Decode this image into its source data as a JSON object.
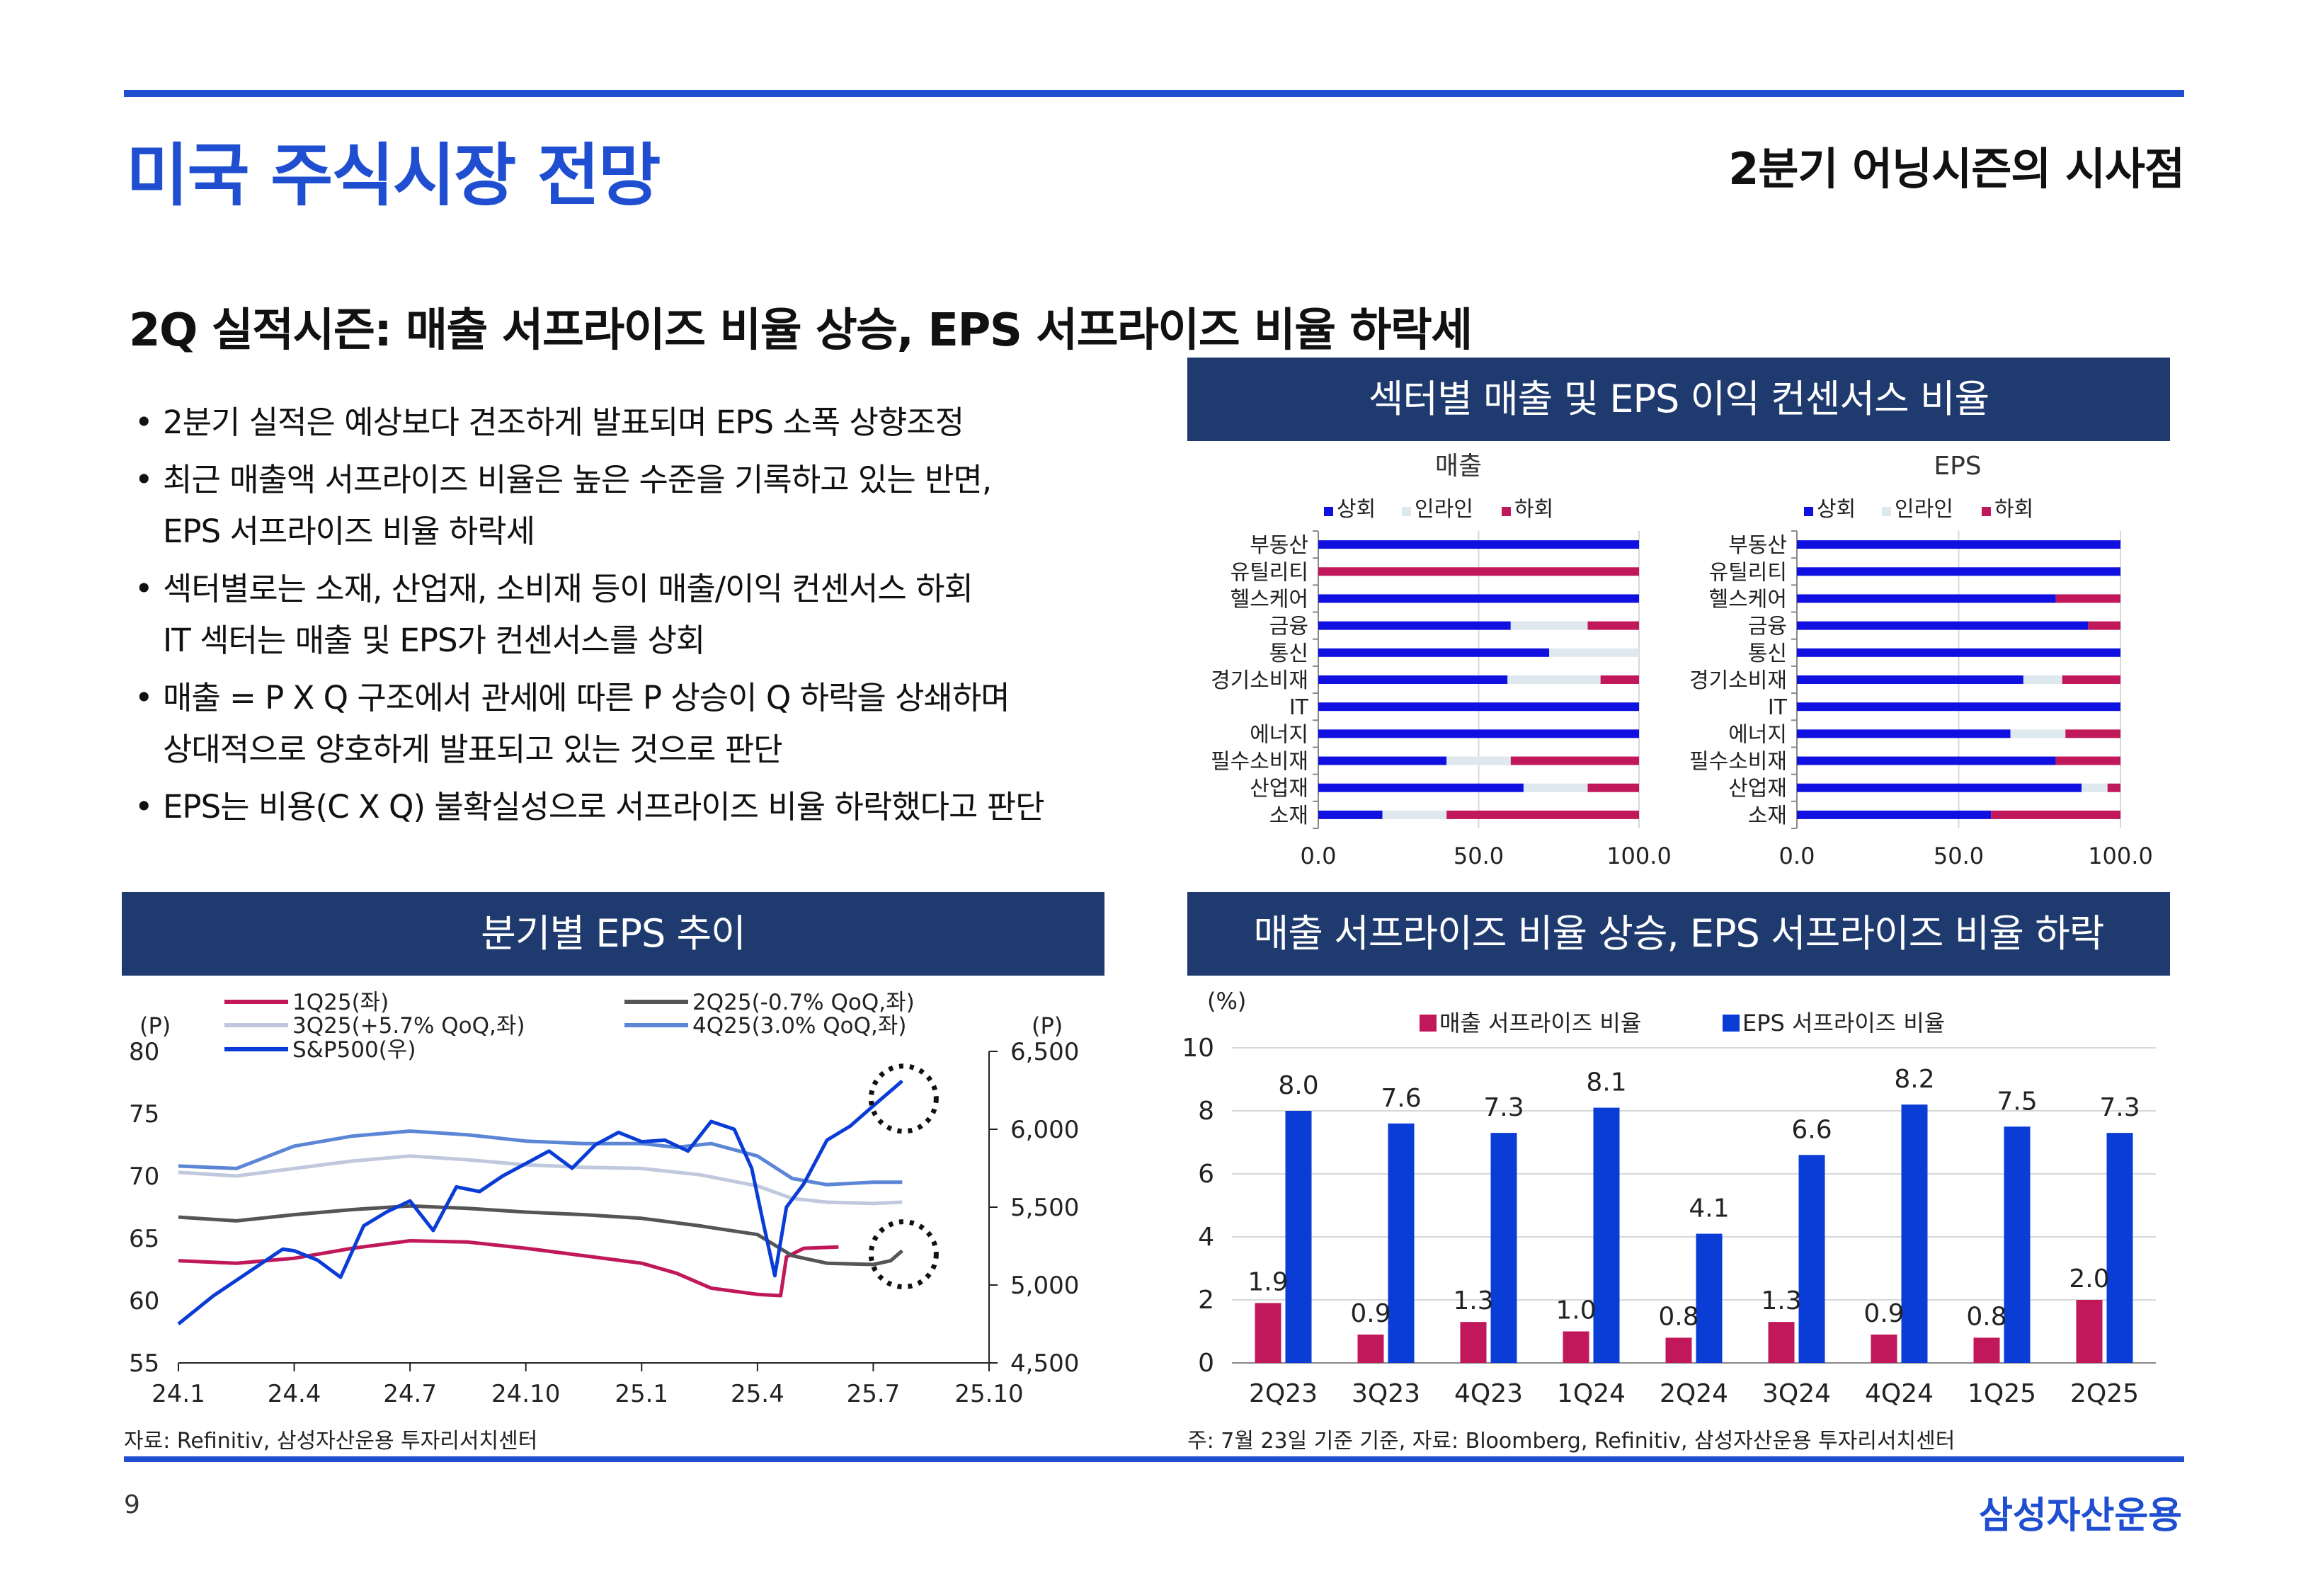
{
  "page": {
    "title": "미국 주식시장 전망",
    "subtitle": "2분기 어닝시즌의 시사점",
    "headline": "2Q 실적시즌: 매출 서프라이즈 비율 상승, EPS 서프라이즈 비율 하락세",
    "page_number": "9",
    "brand": "삼성자산운용"
  },
  "bullets": [
    {
      "lines": [
        "2분기 실적은 예상보다 견조하게 발표되며 EPS 소폭 상향조정"
      ]
    },
    {
      "lines": [
        "최근 매출액 서프라이즈 비율은 높은 수준을 기록하고 있는 반면,",
        "EPS 서프라이즈 비율 하락세"
      ]
    },
    {
      "lines": [
        "섹터별로는 소재, 산업재, 소비재 등이 매출/이익 컨센서스 하회",
        "IT 섹터는 매출 및 EPS가 컨센서스를 상회"
      ]
    },
    {
      "lines": [
        "매출 = P X Q 구조에서 관세에 따른 P 상승이 Q 하락을 상쇄하며",
        "상대적으로 양호하게 발표되고 있는 것으로 판단"
      ]
    },
    {
      "lines": [
        "EPS는 비용(C X Q) 불확실성으로 서프라이즈 비율 하락했다고 판단"
      ]
    }
  ],
  "panels": {
    "sector": {
      "title": "섹터별 매출 및 EPS 이익 컨센서스 비율"
    },
    "eps_trend": {
      "title": "분기별 EPS 추이",
      "source": "자료: Refinitiv, 삼성자산운용 투자리서치센터"
    },
    "surprise": {
      "title": "매출 서프라이즈 비율 상승, EPS 서프라이즈 비율 하락",
      "source": "주: 7월 23일 기준 기준, 자료: Bloomberg, Refinitiv, 삼성자산운용 투자리서치센터"
    }
  },
  "colors": {
    "brand_blue": "#1f4fd0",
    "panel_navy": "#1e3a6e",
    "beat": "#1010e0",
    "inline": "#dde8ef",
    "miss": "#c0185a"
  },
  "chart_data": [
    {
      "type": "bar",
      "stacked": true,
      "orientation": "horizontal",
      "title": "매출",
      "categories": [
        "부동산",
        "유틸리티",
        "헬스케어",
        "금융",
        "통신",
        "경기소비재",
        "IT",
        "에너지",
        "필수소비재",
        "산업재",
        "소재"
      ],
      "series": [
        {
          "name": "상회",
          "values": [
            100,
            0,
            100,
            60,
            72,
            59,
            100,
            100,
            40,
            64,
            20
          ]
        },
        {
          "name": "인라인",
          "values": [
            0,
            0,
            0,
            24,
            28,
            29,
            0,
            0,
            20,
            20,
            20
          ]
        },
        {
          "name": "하회",
          "values": [
            0,
            100,
            0,
            16,
            0,
            12,
            0,
            0,
            40,
            16,
            60
          ]
        }
      ],
      "xlim": [
        0,
        100
      ],
      "xticks": [
        "0.0",
        "50.0",
        "100.0"
      ],
      "legend": "top"
    },
    {
      "type": "bar",
      "stacked": true,
      "orientation": "horizontal",
      "title": "EPS",
      "categories": [
        "부동산",
        "유틸리티",
        "헬스케어",
        "금융",
        "통신",
        "경기소비재",
        "IT",
        "에너지",
        "필수소비재",
        "산업재",
        "소재"
      ],
      "series": [
        {
          "name": "상회",
          "values": [
            100,
            100,
            80,
            90,
            100,
            70,
            100,
            66,
            80,
            88,
            60
          ]
        },
        {
          "name": "인라인",
          "values": [
            0,
            0,
            0,
            0,
            0,
            12,
            0,
            17,
            0,
            8,
            0
          ]
        },
        {
          "name": "하회",
          "values": [
            0,
            0,
            20,
            10,
            0,
            18,
            0,
            17,
            20,
            4,
            40
          ]
        }
      ],
      "xlim": [
        0,
        100
      ],
      "xticks": [
        "0.0",
        "50.0",
        "100.0"
      ],
      "legend": "top"
    },
    {
      "type": "line",
      "x": [
        "24.1",
        "24.4",
        "24.7",
        "24.10",
        "25.1",
        "25.4",
        "25.7",
        "25.10"
      ],
      "ylabel_left": "(P)",
      "ylabel_right": "(P)",
      "ylim_left": [
        55,
        80
      ],
      "ylim_right": [
        4500,
        6500
      ],
      "yticks_left": [
        "80",
        "75",
        "70",
        "65",
        "60",
        "55"
      ],
      "yticks_right": [
        "6,500",
        "6,000",
        "5,500",
        "5,000",
        "4,500"
      ],
      "series": [
        {
          "name": "1Q25(좌)",
          "axis": "left",
          "color": "#c0185a",
          "points": [
            [
              0,
              63.2
            ],
            [
              0.5,
              63.0
            ],
            [
              1,
              63.4
            ],
            [
              1.5,
              64.2
            ],
            [
              2,
              64.8
            ],
            [
              2.5,
              64.7
            ],
            [
              3,
              64.2
            ],
            [
              3.5,
              63.6
            ],
            [
              4,
              63.0
            ],
            [
              4.3,
              62.2
            ],
            [
              4.6,
              61.0
            ],
            [
              5,
              60.5
            ],
            [
              5.2,
              60.4
            ],
            [
              5.25,
              63.5
            ],
            [
              5.4,
              64.2
            ],
            [
              5.7,
              64.3
            ]
          ]
        },
        {
          "name": "2Q25(-0.7% QoQ,좌)",
          "axis": "left",
          "color": "#555555",
          "points": [
            [
              0,
              66.7
            ],
            [
              0.5,
              66.4
            ],
            [
              1,
              66.9
            ],
            [
              1.5,
              67.3
            ],
            [
              2,
              67.6
            ],
            [
              2.5,
              67.4
            ],
            [
              3,
              67.1
            ],
            [
              3.5,
              66.9
            ],
            [
              4,
              66.6
            ],
            [
              4.5,
              66.0
            ],
            [
              5,
              65.3
            ],
            [
              5.3,
              63.6
            ],
            [
              5.6,
              63.0
            ],
            [
              6,
              62.9
            ],
            [
              6.15,
              63.2
            ],
            [
              6.25,
              64.0
            ]
          ]
        },
        {
          "name": "3Q25(+5.7% QoQ,좌)",
          "axis": "left",
          "color": "#c0c8dd",
          "points": [
            [
              0,
              70.3
            ],
            [
              0.5,
              70.0
            ],
            [
              1,
              70.6
            ],
            [
              1.5,
              71.2
            ],
            [
              2,
              71.6
            ],
            [
              2.5,
              71.3
            ],
            [
              3,
              70.9
            ],
            [
              3.5,
              70.7
            ],
            [
              4,
              70.6
            ],
            [
              4.5,
              70.1
            ],
            [
              5,
              69.2
            ],
            [
              5.3,
              68.2
            ],
            [
              5.6,
              67.9
            ],
            [
              6,
              67.8
            ],
            [
              6.25,
              67.9
            ]
          ]
        },
        {
          "name": "4Q25(3.0% QoQ,좌)",
          "axis": "left",
          "color": "#5b86d6",
          "points": [
            [
              0,
              70.8
            ],
            [
              0.5,
              70.6
            ],
            [
              1,
              72.4
            ],
            [
              1.5,
              73.2
            ],
            [
              2,
              73.6
            ],
            [
              2.5,
              73.3
            ],
            [
              3,
              72.8
            ],
            [
              3.5,
              72.6
            ],
            [
              4,
              72.6
            ],
            [
              4.3,
              72.3
            ],
            [
              4.6,
              72.6
            ],
            [
              5,
              71.6
            ],
            [
              5.3,
              69.8
            ],
            [
              5.6,
              69.3
            ],
            [
              6,
              69.5
            ],
            [
              6.25,
              69.5
            ]
          ]
        },
        {
          "name": "S&P500(우)",
          "axis": "right",
          "color": "#0a3cd6",
          "points": [
            [
              0,
              4750
            ],
            [
              0.3,
              4930
            ],
            [
              0.6,
              5080
            ],
            [
              0.9,
              5230
            ],
            [
              1,
              5220
            ],
            [
              1.2,
              5160
            ],
            [
              1.4,
              5050
            ],
            [
              1.6,
              5380
            ],
            [
              1.8,
              5470
            ],
            [
              2,
              5540
            ],
            [
              2.2,
              5350
            ],
            [
              2.4,
              5630
            ],
            [
              2.6,
              5600
            ],
            [
              2.8,
              5700
            ],
            [
              3,
              5780
            ],
            [
              3.2,
              5860
            ],
            [
              3.4,
              5750
            ],
            [
              3.6,
              5900
            ],
            [
              3.8,
              5980
            ],
            [
              4,
              5920
            ],
            [
              4.2,
              5930
            ],
            [
              4.4,
              5860
            ],
            [
              4.6,
              6050
            ],
            [
              4.8,
              6000
            ],
            [
              4.95,
              5750
            ],
            [
              5.05,
              5400
            ],
            [
              5.15,
              5060
            ],
            [
              5.25,
              5500
            ],
            [
              5.4,
              5650
            ],
            [
              5.6,
              5930
            ],
            [
              5.8,
              6020
            ],
            [
              6,
              6150
            ],
            [
              6.25,
              6310
            ]
          ]
        }
      ],
      "annotations": [
        "dotted-circle-spx-end",
        "dotted-circle-2q25-end"
      ]
    },
    {
      "type": "bar",
      "categories": [
        "2Q23",
        "3Q23",
        "4Q23",
        "1Q24",
        "2Q24",
        "3Q24",
        "4Q24",
        "1Q25",
        "2Q25"
      ],
      "ylabel": "(%)",
      "ylim": [
        0,
        10
      ],
      "yticks": [
        "10",
        "8",
        "6",
        "4",
        "2",
        "0"
      ],
      "series": [
        {
          "name": "매출 서프라이즈 비율",
          "values": [
            1.9,
            0.9,
            1.3,
            1.0,
            0.8,
            1.3,
            0.9,
            0.8,
            2.0
          ],
          "labels": [
            "1.9",
            "0.9",
            "1.3",
            "1.0",
            "0.8",
            "1.3",
            "0.9",
            "0.8",
            "2.0"
          ]
        },
        {
          "name": "EPS 서프라이즈 비율",
          "values": [
            8.0,
            7.6,
            7.3,
            8.1,
            4.1,
            6.6,
            8.2,
            7.5,
            7.3
          ],
          "labels": [
            "8.0",
            "7.6",
            "7.3",
            "8.1",
            "4.1",
            "6.6",
            "8.2",
            "7.5",
            "7.3"
          ]
        }
      ],
      "legend": "top"
    }
  ]
}
